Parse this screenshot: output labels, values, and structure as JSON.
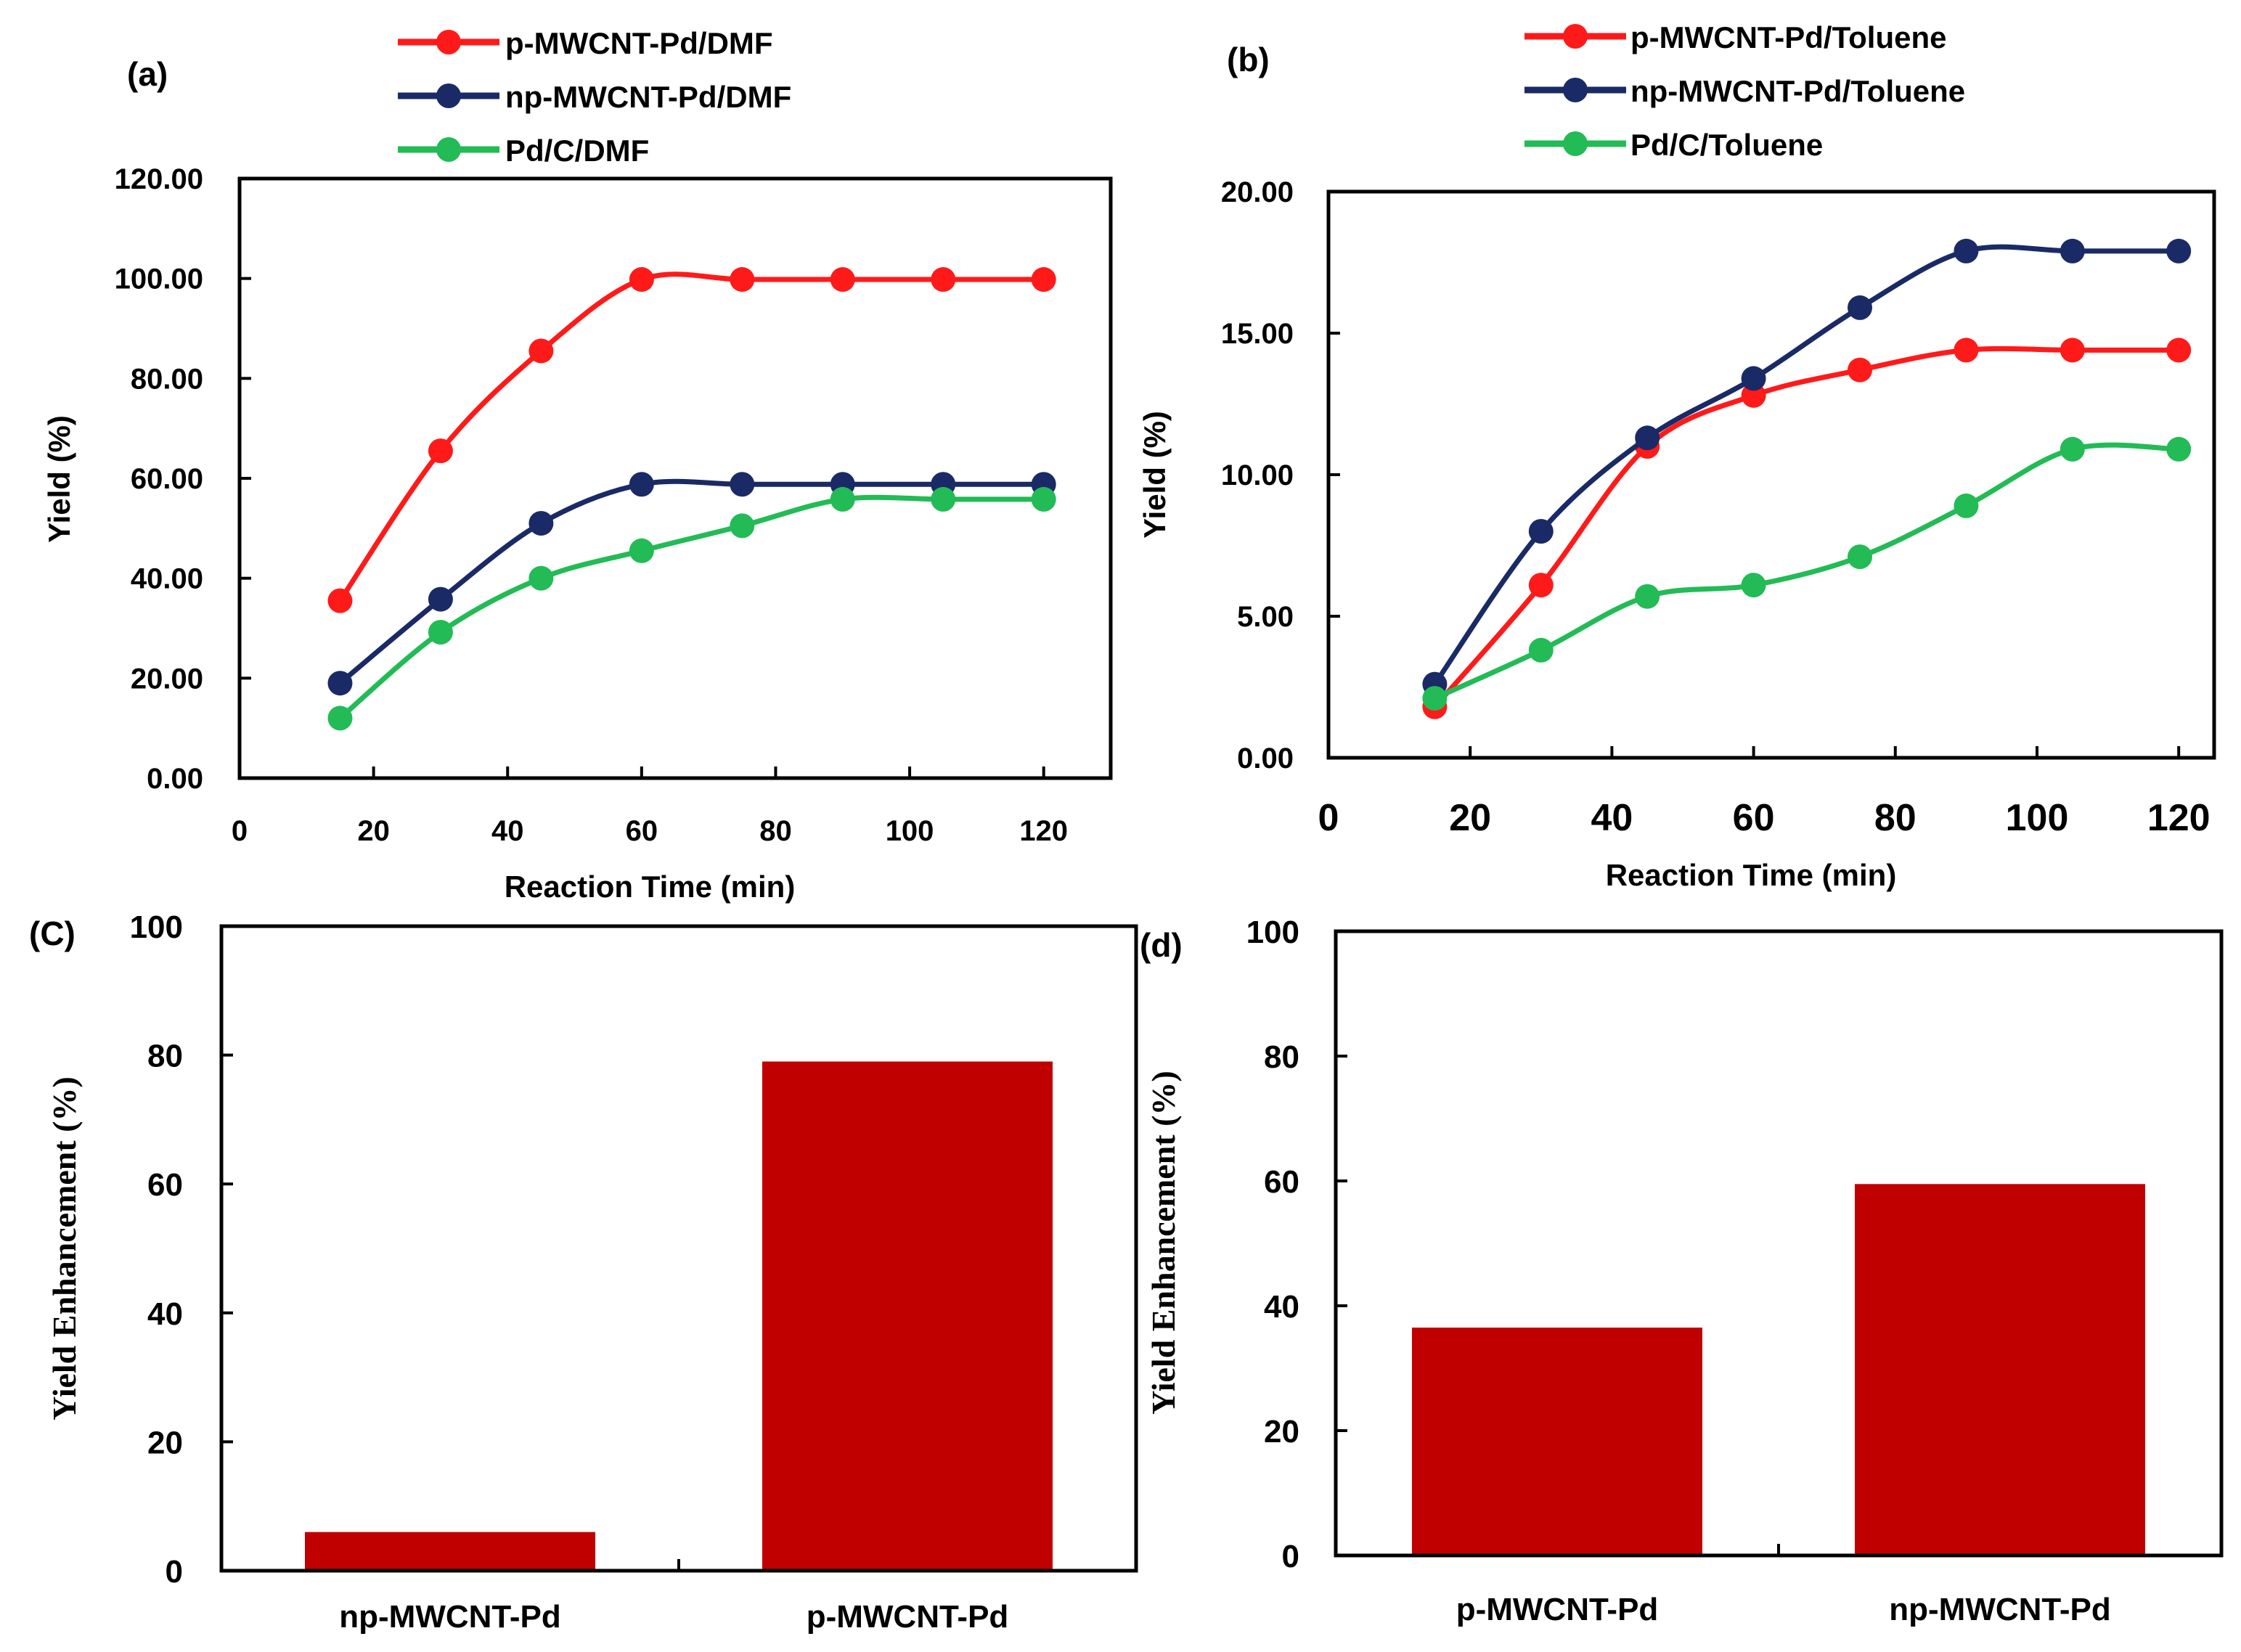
{
  "chart_data": [
    {
      "id": "a",
      "panel_label": "(a)",
      "type": "line",
      "xlabel": "Reaction Time (min)",
      "ylabel": "Yield (%)",
      "xlim": [
        0,
        130
      ],
      "ylim": [
        0,
        120
      ],
      "xticks": [
        0,
        20,
        40,
        60,
        80,
        100,
        120
      ],
      "yticks": [
        0,
        20,
        40,
        60,
        80,
        100,
        120
      ],
      "xtick_labels": [
        "0",
        "20",
        "40",
        "60",
        "80",
        "100",
        "120"
      ],
      "ytick_labels": [
        "0.00",
        "20.00",
        "40.00",
        "60.00",
        "80.00",
        "100.00",
        "120.00"
      ],
      "grid": false,
      "legend_position": "top-center",
      "x": [
        15,
        30,
        45,
        60,
        75,
        90,
        105,
        120
      ],
      "series": [
        {
          "name": "p-MWCNT-Pd/DMF",
          "color": "#ff1a1a",
          "values": [
            35.5,
            65.5,
            85.5,
            99.8,
            99.8,
            99.8,
            99.8,
            99.8
          ]
        },
        {
          "name": "np-MWCNT-Pd/DMF",
          "color": "#1a2a66",
          "values": [
            19.0,
            35.8,
            51.0,
            58.8,
            58.8,
            58.8,
            58.8,
            58.8
          ]
        },
        {
          "name": "Pd/C/DMF",
          "color": "#22bb55",
          "values": [
            12.0,
            29.2,
            40.0,
            45.5,
            50.5,
            55.8,
            55.8,
            55.8
          ]
        }
      ]
    },
    {
      "id": "b",
      "panel_label": "(b)",
      "type": "line",
      "xlabel": "Reaction Time (min)",
      "ylabel": "Yield (%)",
      "xlim": [
        0,
        125
      ],
      "ylim": [
        0,
        20
      ],
      "xticks": [
        0,
        20,
        40,
        60,
        80,
        100,
        120
      ],
      "yticks": [
        0,
        5,
        10,
        15,
        20
      ],
      "xtick_labels": [
        "0",
        "20",
        "40",
        "60",
        "80",
        "100",
        "120"
      ],
      "ytick_labels": [
        "0.00",
        "5.00",
        "10.00",
        "15.00",
        "20.00"
      ],
      "grid": false,
      "legend_position": "top-center",
      "x": [
        15,
        30,
        45,
        60,
        75,
        90,
        105,
        120
      ],
      "series": [
        {
          "name": "p-MWCNT-Pd/Toluene",
          "color": "#ff1a1a",
          "values": [
            1.8,
            6.1,
            11.0,
            12.8,
            13.7,
            14.4,
            14.4,
            14.4
          ]
        },
        {
          "name": "np-MWCNT-Pd/Toluene",
          "color": "#1a2a66",
          "values": [
            2.6,
            8.0,
            11.3,
            13.4,
            15.9,
            17.9,
            17.9,
            17.9
          ]
        },
        {
          "name": "Pd/C/Toluene",
          "color": "#22bb55",
          "values": [
            2.1,
            3.8,
            5.7,
            6.1,
            7.1,
            8.9,
            10.9,
            10.9
          ]
        }
      ]
    },
    {
      "id": "c",
      "panel_label": "(C)",
      "type": "bar",
      "xlabel": "",
      "ylabel": "Yield  Enhancement (%)",
      "ylim": [
        0,
        100
      ],
      "yticks": [
        0,
        20,
        40,
        60,
        80,
        100
      ],
      "ytick_labels": [
        "0",
        "20",
        "40",
        "60",
        "80",
        "100"
      ],
      "grid": false,
      "color": "#c00000",
      "categories": [
        "np-MWCNT-Pd",
        "p-MWCNT-Pd"
      ],
      "values": [
        6,
        79
      ]
    },
    {
      "id": "d",
      "panel_label": "(d)",
      "type": "bar",
      "xlabel": "",
      "ylabel": "Yield  Enhancement (%)",
      "ylim": [
        0,
        100
      ],
      "yticks": [
        0,
        20,
        40,
        60,
        80,
        100
      ],
      "ytick_labels": [
        "0",
        "20",
        "40",
        "60",
        "80",
        "100"
      ],
      "grid": false,
      "color": "#c00000",
      "categories": [
        "p-MWCNT-Pd",
        "np-MWCNT-Pd"
      ],
      "values": [
        36.5,
        59.5
      ]
    }
  ]
}
